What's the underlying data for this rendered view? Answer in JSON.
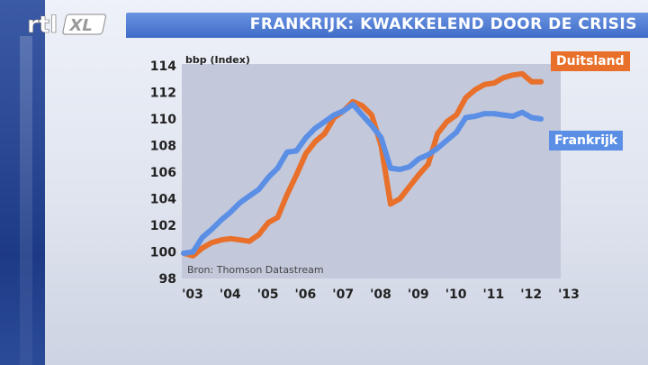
{
  "header": {
    "logo_text": "rtl XL",
    "title": "FRANKRIJK: KWAKKELEND DOOR DE CRISIS"
  },
  "colors": {
    "duitsland": "#e8702a",
    "frankrijk": "#5b8fe6",
    "header_bar": "#4f7ad4",
    "plot_bg": "#c5c9dc"
  },
  "chart_data": {
    "type": "line",
    "title": "FRANKRIJK: KWAKKELEND DOOR DE CRISIS",
    "ylabel": "bbp (Index)",
    "xlabel": "",
    "source": "Bron: Thomson Datastream",
    "ylim": [
      98,
      114
    ],
    "yticks": [
      98,
      100,
      102,
      104,
      106,
      108,
      110,
      112,
      114
    ],
    "xlim": [
      2003.0,
      2013.0
    ],
    "xticks": [
      {
        "label": "'03",
        "x": 2003.0
      },
      {
        "label": "'04",
        "x": 2004.0
      },
      {
        "label": "'05",
        "x": 2005.0
      },
      {
        "label": "'06",
        "x": 2006.0
      },
      {
        "label": "'07",
        "x": 2007.0
      },
      {
        "label": "'08",
        "x": 2008.0
      },
      {
        "label": "'09",
        "x": 2009.0
      },
      {
        "label": "'10",
        "x": 2010.0
      },
      {
        "label": "'11",
        "x": 2011.0
      },
      {
        "label": "'12",
        "x": 2012.0
      },
      {
        "label": "'13",
        "x": 2013.0
      }
    ],
    "grid": false,
    "series": [
      {
        "name": "Duitsland",
        "color": "#e8702a",
        "x": [
          2003.0,
          2003.25,
          2003.5,
          2003.75,
          2004.0,
          2004.25,
          2004.5,
          2004.75,
          2005.0,
          2005.25,
          2005.5,
          2005.75,
          2006.0,
          2006.25,
          2006.5,
          2006.75,
          2007.0,
          2007.25,
          2007.5,
          2007.75,
          2008.0,
          2008.25,
          2008.5,
          2008.75,
          2009.0,
          2009.25,
          2009.5,
          2009.75,
          2010.0,
          2010.25,
          2010.5,
          2010.75,
          2011.0,
          2011.25,
          2011.5,
          2011.75,
          2012.0,
          2012.25,
          2012.5
        ],
        "values": [
          99.9,
          99.7,
          100.3,
          100.7,
          100.9,
          101.0,
          100.9,
          100.8,
          101.3,
          102.2,
          102.6,
          104.3,
          105.8,
          107.4,
          108.3,
          108.9,
          110.1,
          110.6,
          111.3,
          111.0,
          110.3,
          108.0,
          103.6,
          104.0,
          104.9,
          105.8,
          106.6,
          108.9,
          109.8,
          110.3,
          111.6,
          112.2,
          112.6,
          112.7,
          113.1,
          113.3,
          113.4,
          112.8,
          112.8
        ]
      },
      {
        "name": "Frankrijk",
        "color": "#5b8fe6",
        "x": [
          2003.0,
          2003.25,
          2003.5,
          2003.75,
          2004.0,
          2004.25,
          2004.5,
          2004.75,
          2005.0,
          2005.25,
          2005.5,
          2005.75,
          2006.0,
          2006.25,
          2006.5,
          2006.75,
          2007.0,
          2007.25,
          2007.5,
          2007.75,
          2008.0,
          2008.25,
          2008.5,
          2008.75,
          2009.0,
          2009.25,
          2009.5,
          2009.75,
          2010.0,
          2010.25,
          2010.5,
          2010.75,
          2011.0,
          2011.25,
          2011.5,
          2011.75,
          2012.0,
          2012.25,
          2012.5
        ],
        "values": [
          99.9,
          100.0,
          101.1,
          101.7,
          102.4,
          103.0,
          103.7,
          104.2,
          104.7,
          105.6,
          106.3,
          107.5,
          107.6,
          108.6,
          109.3,
          109.8,
          110.3,
          110.6,
          111.1,
          110.3,
          109.5,
          108.6,
          106.3,
          106.2,
          106.4,
          107.0,
          107.3,
          107.8,
          108.4,
          109.0,
          110.1,
          110.2,
          110.4,
          110.4,
          110.3,
          110.2,
          110.5,
          110.1,
          110.0
        ]
      }
    ]
  }
}
